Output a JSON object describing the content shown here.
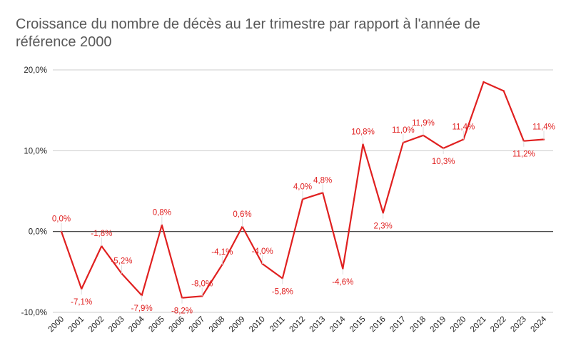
{
  "chart_data": {
    "type": "line",
    "title": "Croissance du nombre de décès au 1er trimestre par rapport à l'année de référence 2000",
    "xlabel": "",
    "ylabel": "",
    "categories": [
      "2000",
      "2001",
      "2002",
      "2003",
      "2004",
      "2005",
      "2006",
      "2007",
      "2008",
      "2009",
      "2010",
      "2011",
      "2012",
      "2013",
      "2014",
      "2015",
      "2016",
      "2017",
      "2018",
      "2019",
      "2020",
      "2021",
      "2022",
      "2023",
      "2024"
    ],
    "series": [
      {
        "name": "Croissance",
        "color": "#e02020",
        "values": [
          0.0,
          -7.1,
          -1.8,
          -5.2,
          -7.9,
          0.8,
          -8.2,
          -8.0,
          -4.1,
          0.6,
          -4.0,
          -5.8,
          4.0,
          4.8,
          -4.6,
          10.8,
          2.3,
          11.0,
          11.9,
          10.3,
          11.4,
          18.5,
          17.4,
          11.2,
          11.4
        ],
        "labels": [
          "0,0%",
          "-7,1%",
          "-1,8%",
          "-5,2%",
          "-7,9%",
          "0,8%",
          "-8,2%",
          "-8,0%",
          "-4,1%",
          "0,6%",
          "-4,0%",
          "-5,8%",
          "4,0%",
          "4,8%",
          "-4,6%",
          "10,8%",
          "2,3%",
          "11,0%",
          "11,9%",
          "10,3%",
          "11,4%",
          "",
          "",
          "11,2%",
          "11,4%"
        ]
      }
    ],
    "ylim": [
      -10,
      20
    ],
    "yticks": [
      {
        "value": 20,
        "label": "20,0%"
      },
      {
        "value": 10,
        "label": "10,0%"
      },
      {
        "value": 0,
        "label": "0,0%"
      },
      {
        "value": -10,
        "label": "-10,0%"
      }
    ],
    "grid": true,
    "colors": {
      "line": "#e02020",
      "grid": "#cccccc",
      "zero": "#333333"
    }
  }
}
